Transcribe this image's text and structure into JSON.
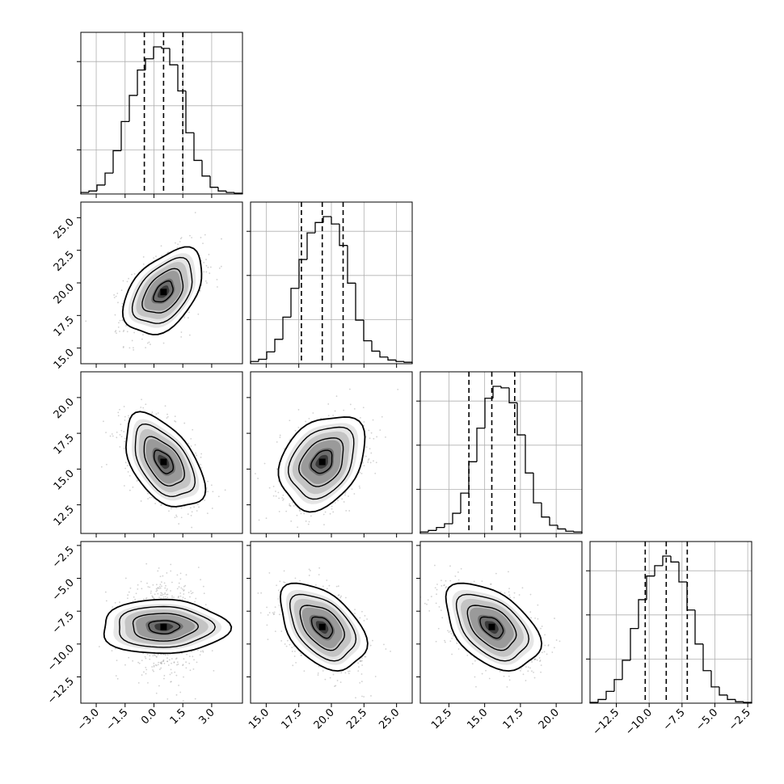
{
  "chart_data": {
    "type": "corner",
    "grid": true,
    "params": [
      {
        "range": [
          -3.8,
          4.6
        ],
        "ticks": [
          -3.0,
          -1.5,
          0.0,
          1.5,
          3.0
        ],
        "tick_labels": [
          "−3.0",
          "−1.5",
          "0.0",
          "1.5",
          "3.0"
        ],
        "mean": 0.5,
        "sigma": 1.0,
        "quantiles": [
          -0.5,
          0.5,
          1.5
        ]
      },
      {
        "range": [
          13.8,
          26.2
        ],
        "ticks": [
          15.0,
          17.5,
          20.0,
          22.5,
          25.0
        ],
        "tick_labels": [
          "15.0",
          "17.5",
          "20.0",
          "22.5",
          "25.0"
        ],
        "mean": 19.3,
        "sigma": 1.6,
        "quantiles": [
          17.7,
          19.3,
          20.9
        ]
      },
      {
        "range": [
          10.5,
          21.8
        ],
        "ticks": [
          12.5,
          15.0,
          17.5,
          20.0
        ],
        "tick_labels": [
          "12.5",
          "15.0",
          "17.5",
          "20.0"
        ],
        "mean": 15.5,
        "sigma": 1.6,
        "quantiles": [
          13.9,
          15.5,
          17.1
        ]
      },
      {
        "range": [
          -14.5,
          -2.2
        ],
        "ticks": [
          -12.5,
          -10.0,
          -7.5,
          -5.0,
          -2.5
        ],
        "tick_labels": [
          "−12.5",
          "−10.0",
          "−7.5",
          "−5.0",
          "−2.5"
        ],
        "mean": -8.7,
        "sigma": 1.6,
        "quantiles": [
          -10.3,
          -8.7,
          -7.1
        ]
      }
    ],
    "correlations": [
      {
        "pair": [
          0,
          1
        ],
        "rho": 0.45
      },
      {
        "pair": [
          0,
          2
        ],
        "rho": -0.5
      },
      {
        "pair": [
          0,
          3
        ],
        "rho": 0.0
      },
      {
        "pair": [
          1,
          2
        ],
        "rho": 0.3
      },
      {
        "pair": [
          1,
          3
        ],
        "rho": -0.45
      },
      {
        "pair": [
          2,
          3
        ],
        "rho": -0.45
      }
    ],
    "histograms": [
      {
        "param": 0,
        "edges": [
          -3.8,
          -3.38,
          -2.96,
          -2.54,
          -2.12,
          -1.7,
          -1.28,
          -0.86,
          -0.44,
          -0.02,
          0.4,
          0.82,
          1.24,
          1.66,
          2.08,
          2.5,
          2.92,
          3.34,
          3.76,
          4.18,
          4.6
        ],
        "counts": [
          2,
          4,
          12,
          28,
          58,
          97,
          132,
          166,
          181,
          197,
          195,
          173,
          138,
          82,
          45,
          24,
          9,
          4,
          2,
          1
        ]
      },
      {
        "param": 1,
        "edges": [
          13.8,
          14.42,
          15.04,
          15.66,
          16.28,
          16.9,
          17.52,
          18.14,
          18.76,
          19.38,
          20.0,
          20.62,
          21.24,
          21.86,
          22.48,
          23.1,
          23.72,
          24.34,
          24.96,
          25.58,
          26.2
        ],
        "counts": [
          3,
          6,
          16,
          33,
          63,
          102,
          141,
          177,
          191,
          199,
          189,
          160,
          109,
          59,
          31,
          17,
          9,
          5,
          3,
          2
        ]
      },
      {
        "param": 2,
        "edges": [
          10.5,
          11.065,
          11.63,
          12.195,
          12.76,
          13.325,
          13.89,
          14.455,
          15.02,
          15.585,
          16.15,
          16.715,
          17.28,
          17.845,
          18.41,
          18.975,
          19.54,
          20.105,
          20.67,
          21.235,
          21.8
        ],
        "counts": [
          2,
          4,
          8,
          13,
          27,
          54,
          96,
          141,
          181,
          197,
          195,
          175,
          132,
          81,
          41,
          22,
          11,
          6,
          3,
          2
        ]
      },
      {
        "param": 3,
        "edges": [
          -14.5,
          -13.885,
          -13.27,
          -12.655,
          -12.04,
          -11.425,
          -10.81,
          -10.195,
          -9.58,
          -8.965,
          -8.35,
          -7.735,
          -7.12,
          -6.505,
          -5.89,
          -5.275,
          -4.66,
          -4.045,
          -3.43,
          -2.815,
          -2.2
        ],
        "counts": [
          1,
          5,
          16,
          32,
          58,
          101,
          140,
          172,
          186,
          199,
          191,
          164,
          126,
          80,
          44,
          22,
          11,
          5,
          2,
          1
        ]
      }
    ]
  }
}
